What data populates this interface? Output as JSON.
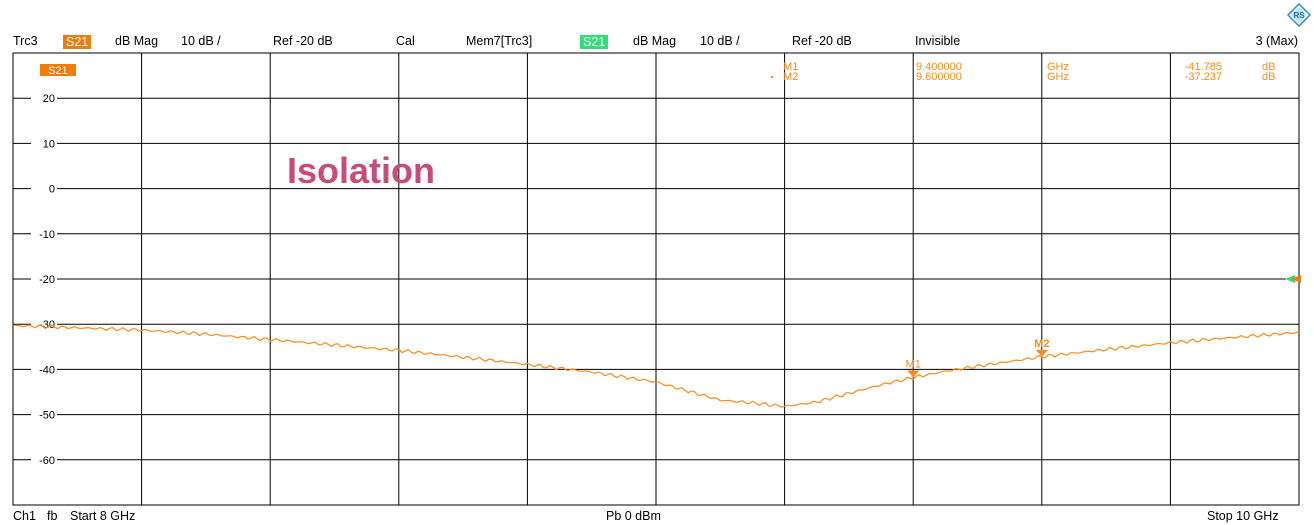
{
  "header": {
    "trace": "Trc3",
    "param": "S21",
    "format": "dB Mag",
    "scale": "10 dB /",
    "ref": "Ref -20 dB",
    "cal": "Cal",
    "mem_trace": "Mem7[Trc3]",
    "mem_param": "S21",
    "mem_format": "dB Mag",
    "mem_scale": "10 dB /",
    "mem_ref": "Ref -20 dB",
    "mem_state": "Invisible",
    "right": "3 (Max)"
  },
  "footer": {
    "channel": "Ch1",
    "fb": "fb",
    "start": "Start  8 GHz",
    "power": "Pb   0 dBm",
    "stop": "Stop  10 GHz"
  },
  "plot_label": "S21",
  "annotation": "Isolation",
  "markers": [
    {
      "name": "M1",
      "freq": "9.400000",
      "unit": "GHz",
      "value": "-41.785",
      "vunit": "dB",
      "x": 9.4,
      "y": -41.785
    },
    {
      "name": "M2",
      "freq": "9.600000",
      "unit": "GHz",
      "value": "-37.237",
      "vunit": "dB",
      "x": 9.6,
      "y": -37.237
    }
  ],
  "colors": {
    "trace": "#FF8A1A",
    "param_badge": "#F07D0B",
    "mem_badge": "#2EE07A",
    "annotation": "#C94B7A",
    "marker_text": "#FF8A1A"
  },
  "chart_data": {
    "type": "line",
    "xlim": [
      8,
      10
    ],
    "ylim": [
      -70,
      30
    ],
    "xlabel": "",
    "ylabel": "",
    "ytick_labels": [
      "20",
      "10",
      "0",
      "-10",
      "-20",
      "-30",
      "-40",
      "-50",
      "-60"
    ],
    "ytick_values": [
      20,
      10,
      0,
      -10,
      -20,
      -30,
      -40,
      -50,
      -60
    ],
    "grid": true,
    "series": [
      {
        "name": "S21",
        "x": [
          8.0,
          8.1,
          8.2,
          8.3,
          8.4,
          8.5,
          8.6,
          8.7,
          8.8,
          8.9,
          9.0,
          9.05,
          9.1,
          9.15,
          9.2,
          9.25,
          9.3,
          9.35,
          9.4,
          9.45,
          9.5,
          9.6,
          9.7,
          9.8,
          9.9,
          10.0
        ],
        "y": [
          -30.3,
          -30.8,
          -31.3,
          -32.2,
          -33.4,
          -34.6,
          -35.8,
          -37.3,
          -38.9,
          -40.6,
          -42.8,
          -44.8,
          -46.8,
          -47.4,
          -48.2,
          -47.2,
          -45.3,
          -43.4,
          -41.8,
          -40.4,
          -39.3,
          -37.2,
          -35.6,
          -34.1,
          -32.9,
          -31.8
        ]
      }
    ],
    "ref_level": -20
  }
}
